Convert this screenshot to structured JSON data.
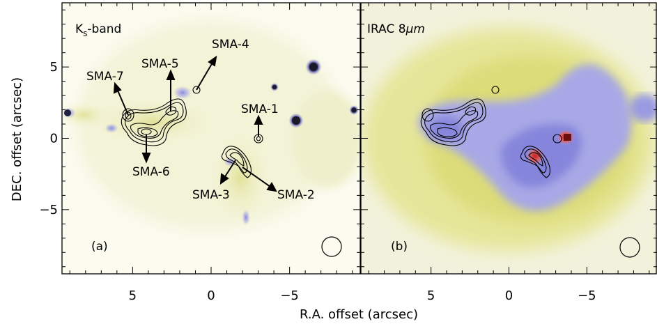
{
  "chart_data": [
    {
      "type": "image",
      "panel": "(a)",
      "band_label": "K",
      "band_subscript": "s",
      "band_suffix": "-band",
      "xlabel": "R.A. offset (arcsec)",
      "ylabel": "DEC. offset (arcsec)",
      "xlim": [
        9.5,
        -9.5
      ],
      "ylim": [
        -9.5,
        9.5
      ],
      "x_ticks": [
        5,
        0,
        -5
      ],
      "y_ticks": [
        5,
        0,
        -5
      ],
      "sources": [
        {
          "name": "SMA-1",
          "x": -3.0,
          "y": 0.0
        },
        {
          "name": "SMA-2",
          "x": -1.9,
          "y": -2.4
        },
        {
          "name": "SMA-3",
          "x": -1.3,
          "y": -1.3
        },
        {
          "name": "SMA-4",
          "x": -0.9,
          "y": 3.6
        },
        {
          "name": "SMA-5",
          "x": 2.6,
          "y": 2.0
        },
        {
          "name": "SMA-6",
          "x": 4.3,
          "y": 0.5
        },
        {
          "name": "SMA-7",
          "x": 5.4,
          "y": 1.6
        }
      ],
      "beam": "circle (lower right)"
    },
    {
      "type": "image",
      "panel": "(b)",
      "band_label": "IRAC 8",
      "band_unit": "μm",
      "xlabel": "R.A. offset (arcsec)",
      "xlim": [
        9.5,
        -9.5
      ],
      "ylim": [
        -9.5,
        9.5
      ],
      "x_ticks": [
        5,
        0,
        -5
      ],
      "y_ticks": [
        5,
        0,
        -5
      ],
      "beam": "circle (lower right)"
    }
  ],
  "colors": {
    "background": "#fbfbf0",
    "yellow": "#e0e085",
    "blue": "#9a9ae8",
    "red": "#e05050",
    "contour": "#000000"
  }
}
